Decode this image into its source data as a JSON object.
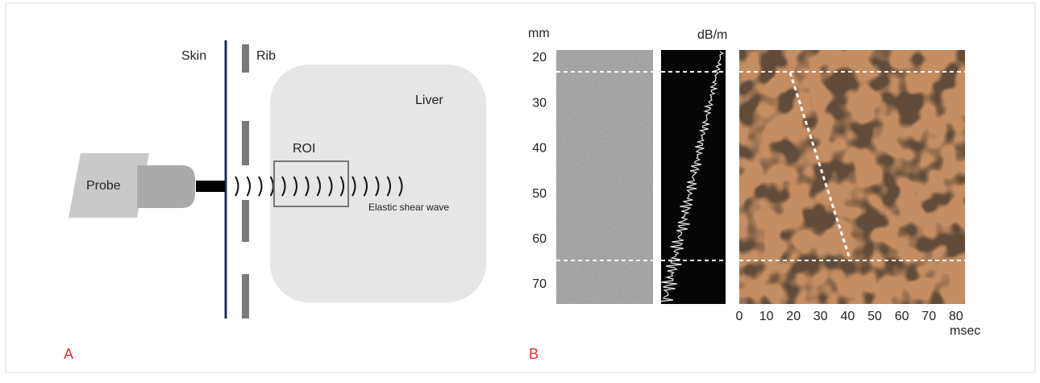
{
  "panel_a": {
    "label": "A",
    "skin": "Skin",
    "rib": "Rib",
    "liver": "Liver",
    "roi": "ROI",
    "probe": "Probe",
    "wave": "Elastic shear wave"
  },
  "panel_b": {
    "label": "B",
    "y_unit": "mm",
    "attenuation_unit": "dB/m",
    "x_unit": "msec",
    "depth_labels": [
      "20",
      "30",
      "40",
      "50",
      "60",
      "70"
    ],
    "time_labels": [
      "0",
      "10",
      "20",
      "30",
      "40",
      "50",
      "60",
      "70",
      "80"
    ]
  }
}
